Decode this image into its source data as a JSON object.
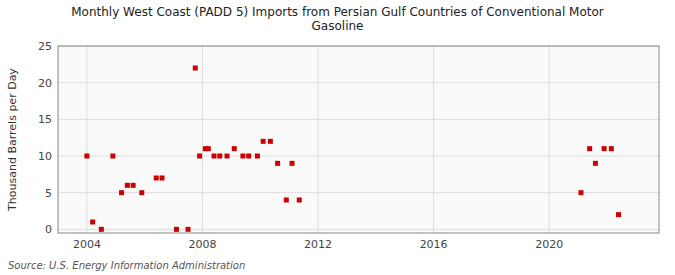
{
  "chart_data": {
    "type": "scatter",
    "title": "Monthly West Coast (PADD 5) Imports from Persian Gulf Countries of Conventional Motor\nGasoline",
    "y_label": "Thousand Barrels per Day",
    "annotations": [
      "Source: U.S. Energy Information Administration"
    ],
    "color": "#cc0000",
    "marker": "square",
    "grid": true,
    "xlim": [
      2003.0,
      2023.8
    ],
    "ylim": [
      -0.5,
      25
    ],
    "xticks": [
      2004,
      2008,
      2012,
      2016,
      2020
    ],
    "yticks": [
      0,
      5,
      10,
      15,
      20,
      25
    ],
    "x": [
      2004.0,
      2004.2,
      2004.5,
      2004.9,
      2005.2,
      2005.4,
      2005.6,
      2005.9,
      2006.4,
      2006.6,
      2007.1,
      2007.5,
      2007.75,
      2007.9,
      2008.1,
      2008.2,
      2008.4,
      2008.6,
      2008.85,
      2009.1,
      2009.4,
      2009.6,
      2009.9,
      2010.1,
      2010.35,
      2010.6,
      2010.9,
      2011.1,
      2011.35,
      2021.1,
      2021.4,
      2021.6,
      2021.9,
      2022.15,
      2022.4
    ],
    "values": [
      10,
      1,
      0,
      10,
      5,
      6,
      6,
      5,
      7,
      7,
      0,
      0,
      22,
      10,
      11,
      11,
      10,
      10,
      10,
      11,
      10,
      10,
      10,
      12,
      12,
      9,
      4,
      9,
      4,
      5,
      11,
      9,
      11,
      11,
      2
    ]
  }
}
